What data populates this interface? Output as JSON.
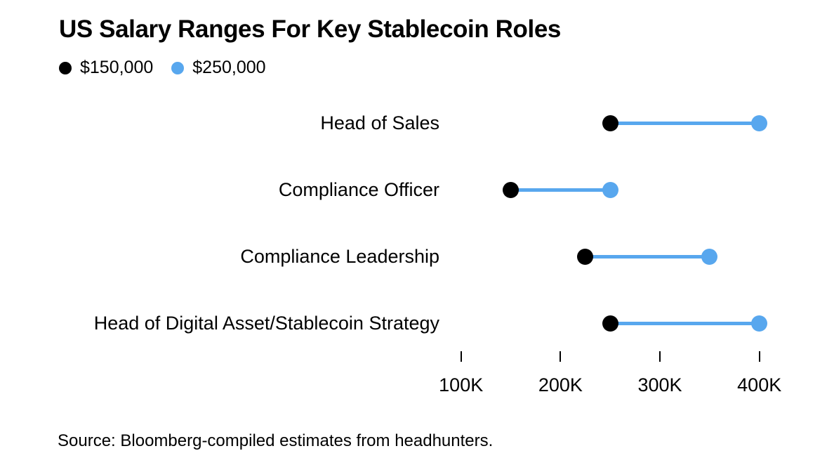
{
  "chart_data": {
    "type": "dumbbell",
    "title": "US Salary Ranges For Key Stablecoin Roles",
    "orientation": "horizontal",
    "grid": false,
    "legend_position": "top-left",
    "categories": [
      "Head of Sales",
      "Compliance Officer",
      "Compliance Leadership",
      "Head of Digital Asset/Stablecoin Strategy"
    ],
    "series": [
      {
        "name": "low",
        "legend_label": "$150,000",
        "color": "#000000",
        "values": [
          250000,
          150000,
          225000,
          250000
        ]
      },
      {
        "name": "high",
        "legend_label": "$250,000",
        "color": "#58a7ee",
        "values": [
          400000,
          250000,
          350000,
          400000
        ]
      }
    ],
    "x_axis": {
      "unit": "USD",
      "ticks": [
        {
          "value": 100000,
          "label": "100K"
        },
        {
          "value": 200000,
          "label": "200K"
        },
        {
          "value": 300000,
          "label": "300K"
        },
        {
          "value": 400000,
          "label": "400K"
        }
      ]
    },
    "source": "Source: Bloomberg-compiled estimates from headhunters."
  },
  "colors": {
    "background": "#ffffff",
    "accent_blue": "#58a7ee",
    "marker_black": "#000000",
    "text": "#000000"
  }
}
